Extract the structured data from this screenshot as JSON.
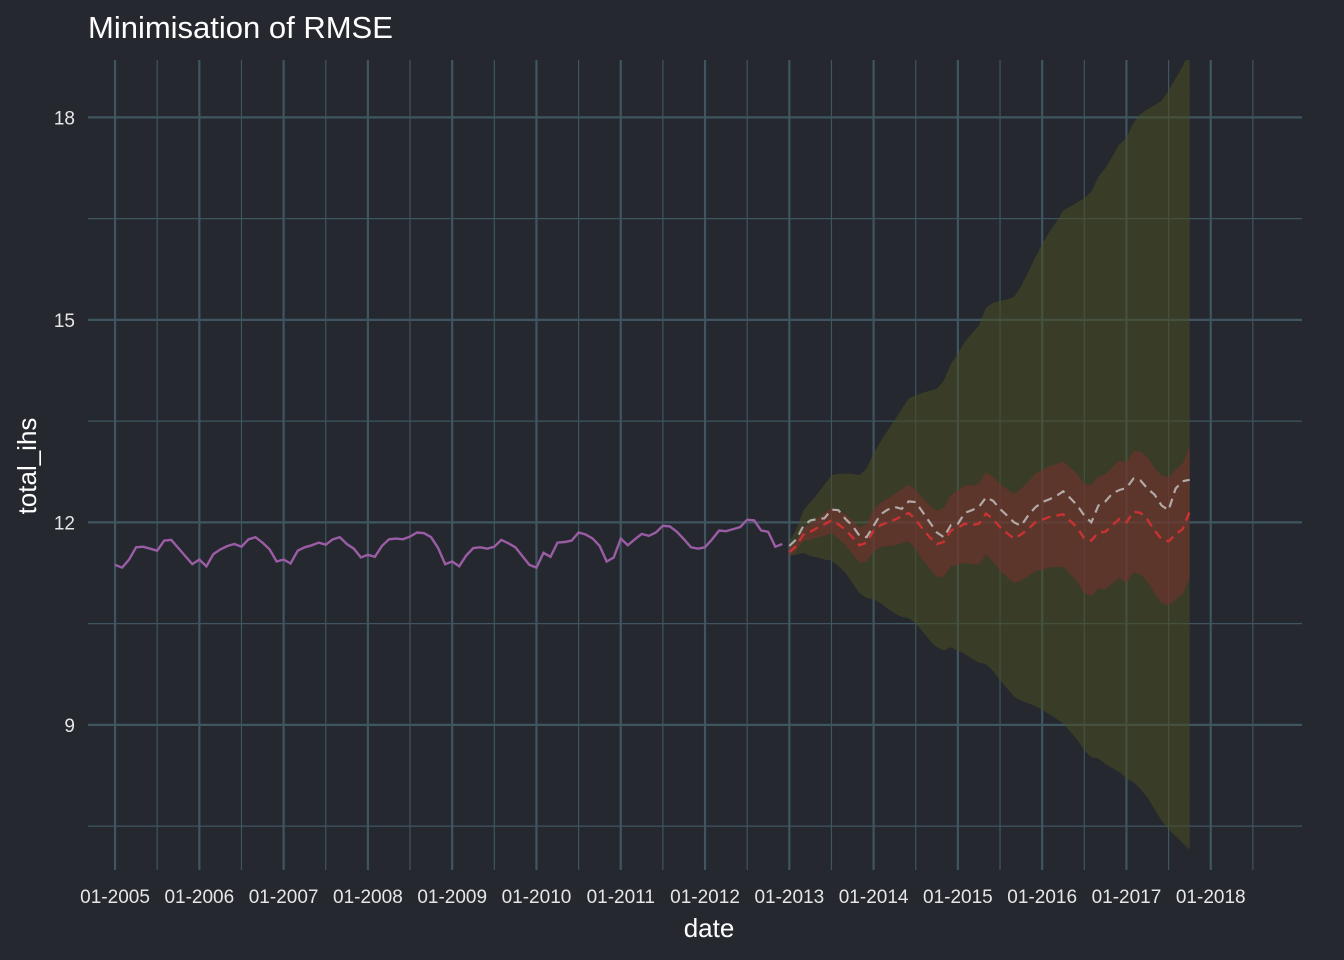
{
  "chart_data": {
    "type": "line",
    "title": "Minimisation of RMSE",
    "xlabel": "date",
    "ylabel": "total_ihs",
    "x_tick_labels": [
      "01-2005",
      "01-2006",
      "01-2007",
      "01-2008",
      "01-2009",
      "01-2010",
      "01-2011",
      "01-2012",
      "01-2013",
      "01-2014",
      "01-2015",
      "01-2016",
      "01-2017",
      "01-2018"
    ],
    "y_ticks": [
      9,
      12,
      15,
      18
    ],
    "ylim": [
      6.85,
      18.85
    ],
    "xlim": [
      "2004-11",
      "2018-12"
    ],
    "grid": true,
    "legend": "none",
    "colors": {
      "background": "#25282e",
      "grid": "#3f5560",
      "history": "#9a5da5",
      "actual": "#d0d0d0",
      "forecast": "#c83232",
      "band_outer": "#4a4d22",
      "band_inner": "#7a3030"
    },
    "history": {
      "start": "2005-01",
      "values": [
        11.37,
        11.33,
        11.45,
        11.63,
        11.64,
        11.61,
        11.58,
        11.73,
        11.74,
        11.62,
        11.5,
        11.38,
        11.45,
        11.35,
        11.53,
        11.6,
        11.65,
        11.68,
        11.64,
        11.75,
        11.78,
        11.7,
        11.6,
        11.42,
        11.45,
        11.39,
        11.58,
        11.63,
        11.66,
        11.7,
        11.67,
        11.75,
        11.78,
        11.68,
        11.61,
        11.48,
        11.52,
        11.49,
        11.65,
        11.75,
        11.76,
        11.75,
        11.79,
        11.85,
        11.84,
        11.78,
        11.62,
        11.38,
        11.42,
        11.35,
        11.51,
        11.62,
        11.63,
        11.61,
        11.64,
        11.74,
        11.69,
        11.63,
        11.5,
        11.37,
        11.33,
        11.55,
        11.49,
        11.7,
        11.71,
        11.73,
        11.85,
        11.82,
        11.76,
        11.65,
        11.42,
        11.48,
        11.76,
        11.66,
        11.75,
        11.83,
        11.8,
        11.85,
        11.95,
        11.94,
        11.86,
        11.75,
        11.63,
        11.61,
        11.63,
        11.75,
        11.88,
        11.87,
        11.9,
        11.93,
        12.04,
        12.03,
        11.88,
        11.86,
        11.64,
        11.68
      ]
    },
    "forecast": {
      "start": "2013-01",
      "actual": [
        11.65,
        11.75,
        11.95,
        12.03,
        12.05,
        12.06,
        12.19,
        12.18,
        12.05,
        11.95,
        11.8,
        11.78,
        11.95,
        12.12,
        12.19,
        12.23,
        12.2,
        12.31,
        12.3,
        12.15,
        12.0,
        11.85,
        11.78,
        11.96,
        11.98,
        12.14,
        12.18,
        12.23,
        12.37,
        12.32,
        12.2,
        12.1,
        12.0,
        11.95,
        12.1,
        12.22,
        12.3,
        12.34,
        12.39,
        12.46,
        12.36,
        12.25,
        12.1,
        12.0,
        12.25,
        12.31,
        12.43,
        12.48,
        12.51,
        12.65,
        12.62,
        12.5,
        12.41,
        12.25,
        12.18,
        12.5,
        12.61,
        12.63
      ],
      "predicted": [
        11.56,
        11.65,
        11.82,
        11.86,
        11.92,
        11.97,
        12.03,
        11.97,
        11.89,
        11.78,
        11.66,
        11.7,
        11.88,
        11.96,
        12.0,
        12.04,
        12.09,
        12.14,
        12.04,
        11.9,
        11.78,
        11.68,
        11.71,
        11.88,
        11.92,
        11.98,
        11.96,
        11.98,
        12.13,
        12.05,
        11.93,
        11.84,
        11.76,
        11.82,
        11.9,
        12.0,
        12.04,
        12.08,
        12.1,
        12.12,
        12.02,
        11.92,
        11.76,
        11.73,
        11.85,
        11.86,
        11.96,
        12.05,
        12.0,
        12.16,
        12.14,
        12.04,
        11.88,
        11.75,
        11.72,
        11.82,
        11.9,
        12.16
      ],
      "band_low_80": [
        11.5,
        11.58,
        11.72,
        11.74,
        11.78,
        11.8,
        11.84,
        11.76,
        11.66,
        11.53,
        11.4,
        11.42,
        11.57,
        11.63,
        11.65,
        11.66,
        11.69,
        11.72,
        11.6,
        11.44,
        11.31,
        11.19,
        11.2,
        11.35,
        11.37,
        11.41,
        11.38,
        11.38,
        11.52,
        11.42,
        11.29,
        11.19,
        11.1,
        11.14,
        11.2,
        11.28,
        11.3,
        11.33,
        11.34,
        11.34,
        11.23,
        11.12,
        10.95,
        10.91,
        11.02,
        11.01,
        11.1,
        11.18,
        11.11,
        11.26,
        11.23,
        11.12,
        10.95,
        10.81,
        10.77,
        10.86,
        10.93,
        11.18
      ],
      "band_high_80": [
        11.62,
        11.72,
        11.92,
        11.98,
        12.06,
        12.14,
        12.22,
        12.18,
        12.12,
        12.03,
        11.92,
        11.98,
        12.19,
        12.29,
        12.35,
        12.42,
        12.49,
        12.56,
        12.48,
        12.36,
        12.25,
        12.17,
        12.22,
        12.41,
        12.47,
        12.55,
        12.54,
        12.58,
        12.74,
        12.68,
        12.57,
        12.49,
        12.42,
        12.5,
        12.6,
        12.72,
        12.78,
        12.83,
        12.86,
        12.9,
        12.81,
        12.72,
        12.57,
        12.55,
        12.68,
        12.71,
        12.82,
        12.92,
        12.89,
        13.06,
        13.05,
        12.96,
        12.81,
        12.69,
        12.67,
        12.78,
        12.87,
        13.14
      ],
      "band_low_95": [
        11.5,
        11.52,
        11.55,
        11.5,
        11.48,
        11.45,
        11.43,
        11.35,
        11.25,
        11.1,
        10.95,
        10.88,
        10.86,
        10.8,
        10.72,
        10.65,
        10.6,
        10.58,
        10.5,
        10.38,
        10.25,
        10.15,
        10.1,
        10.15,
        10.1,
        10.05,
        9.98,
        9.92,
        9.9,
        9.8,
        9.66,
        9.54,
        9.42,
        9.36,
        9.32,
        9.28,
        9.22,
        9.16,
        9.09,
        9.02,
        8.9,
        8.78,
        8.62,
        8.52,
        8.5,
        8.42,
        8.36,
        8.3,
        8.2,
        8.15,
        8.05,
        7.92,
        7.75,
        7.58,
        7.45,
        7.35,
        7.25,
        7.15
      ],
      "band_high_95": [
        11.72,
        11.9,
        12.18,
        12.3,
        12.42,
        12.56,
        12.7,
        12.72,
        12.72,
        12.72,
        12.7,
        12.8,
        13.02,
        13.2,
        13.36,
        13.52,
        13.68,
        13.84,
        13.88,
        13.92,
        13.95,
        13.98,
        14.1,
        14.35,
        14.5,
        14.68,
        14.8,
        14.92,
        15.18,
        15.25,
        15.28,
        15.3,
        15.34,
        15.5,
        15.7,
        15.92,
        16.12,
        16.3,
        16.45,
        16.62,
        16.68,
        16.74,
        16.8,
        16.9,
        17.12,
        17.25,
        17.42,
        17.6,
        17.7,
        17.92,
        18.05,
        18.12,
        18.18,
        18.25,
        18.4,
        18.58,
        18.75,
        19.0
      ]
    }
  }
}
